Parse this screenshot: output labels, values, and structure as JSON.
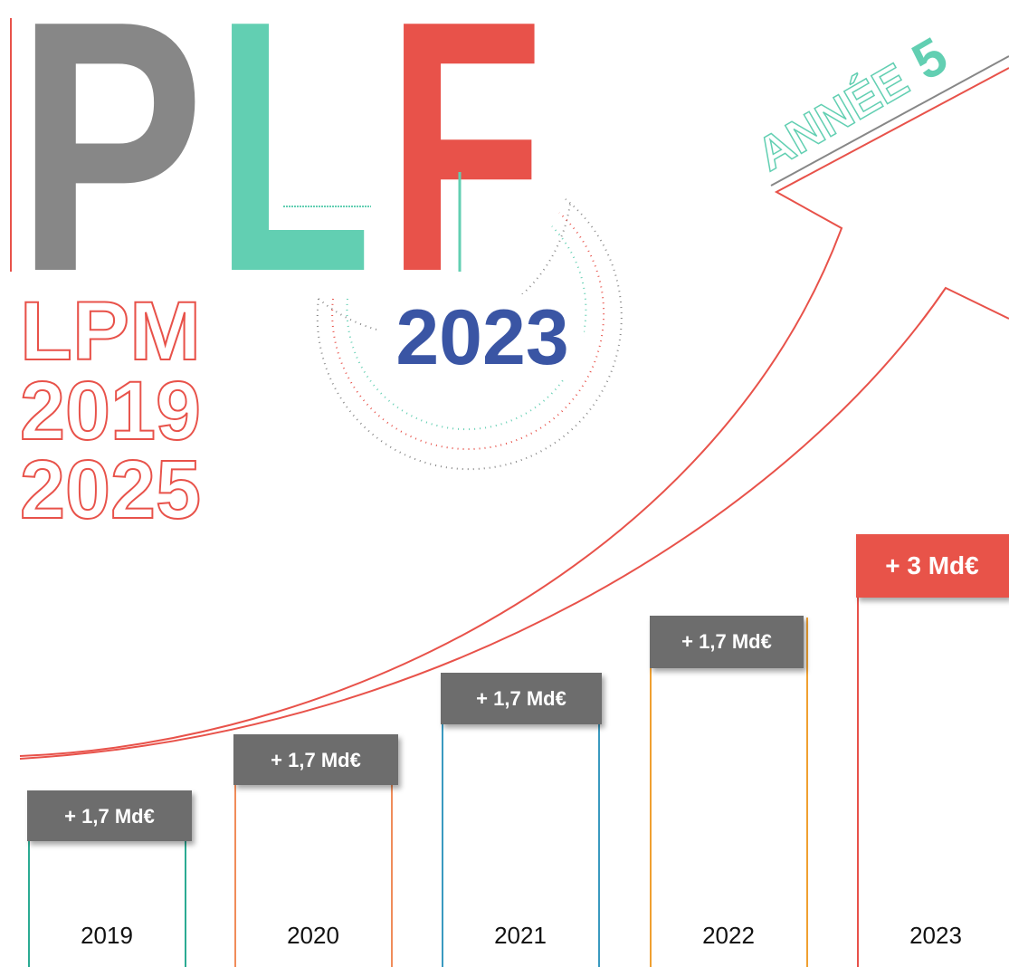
{
  "header": {
    "letters": [
      "P",
      "L",
      "F"
    ],
    "year": "2023",
    "lpm": [
      "LPM",
      "2019",
      "2025"
    ],
    "badge": {
      "text": "ANNÉE",
      "number": "5"
    }
  },
  "columns": [
    {
      "year": "2019",
      "amount": "+ 1,7 Md€"
    },
    {
      "year": "2020",
      "amount": "+ 1,7 Md€"
    },
    {
      "year": "2021",
      "amount": "+ 1,7 Md€"
    },
    {
      "year": "2022",
      "amount": "+ 1,7 Md€"
    },
    {
      "year": "2023",
      "amount": "+ 3 Md€"
    }
  ]
}
